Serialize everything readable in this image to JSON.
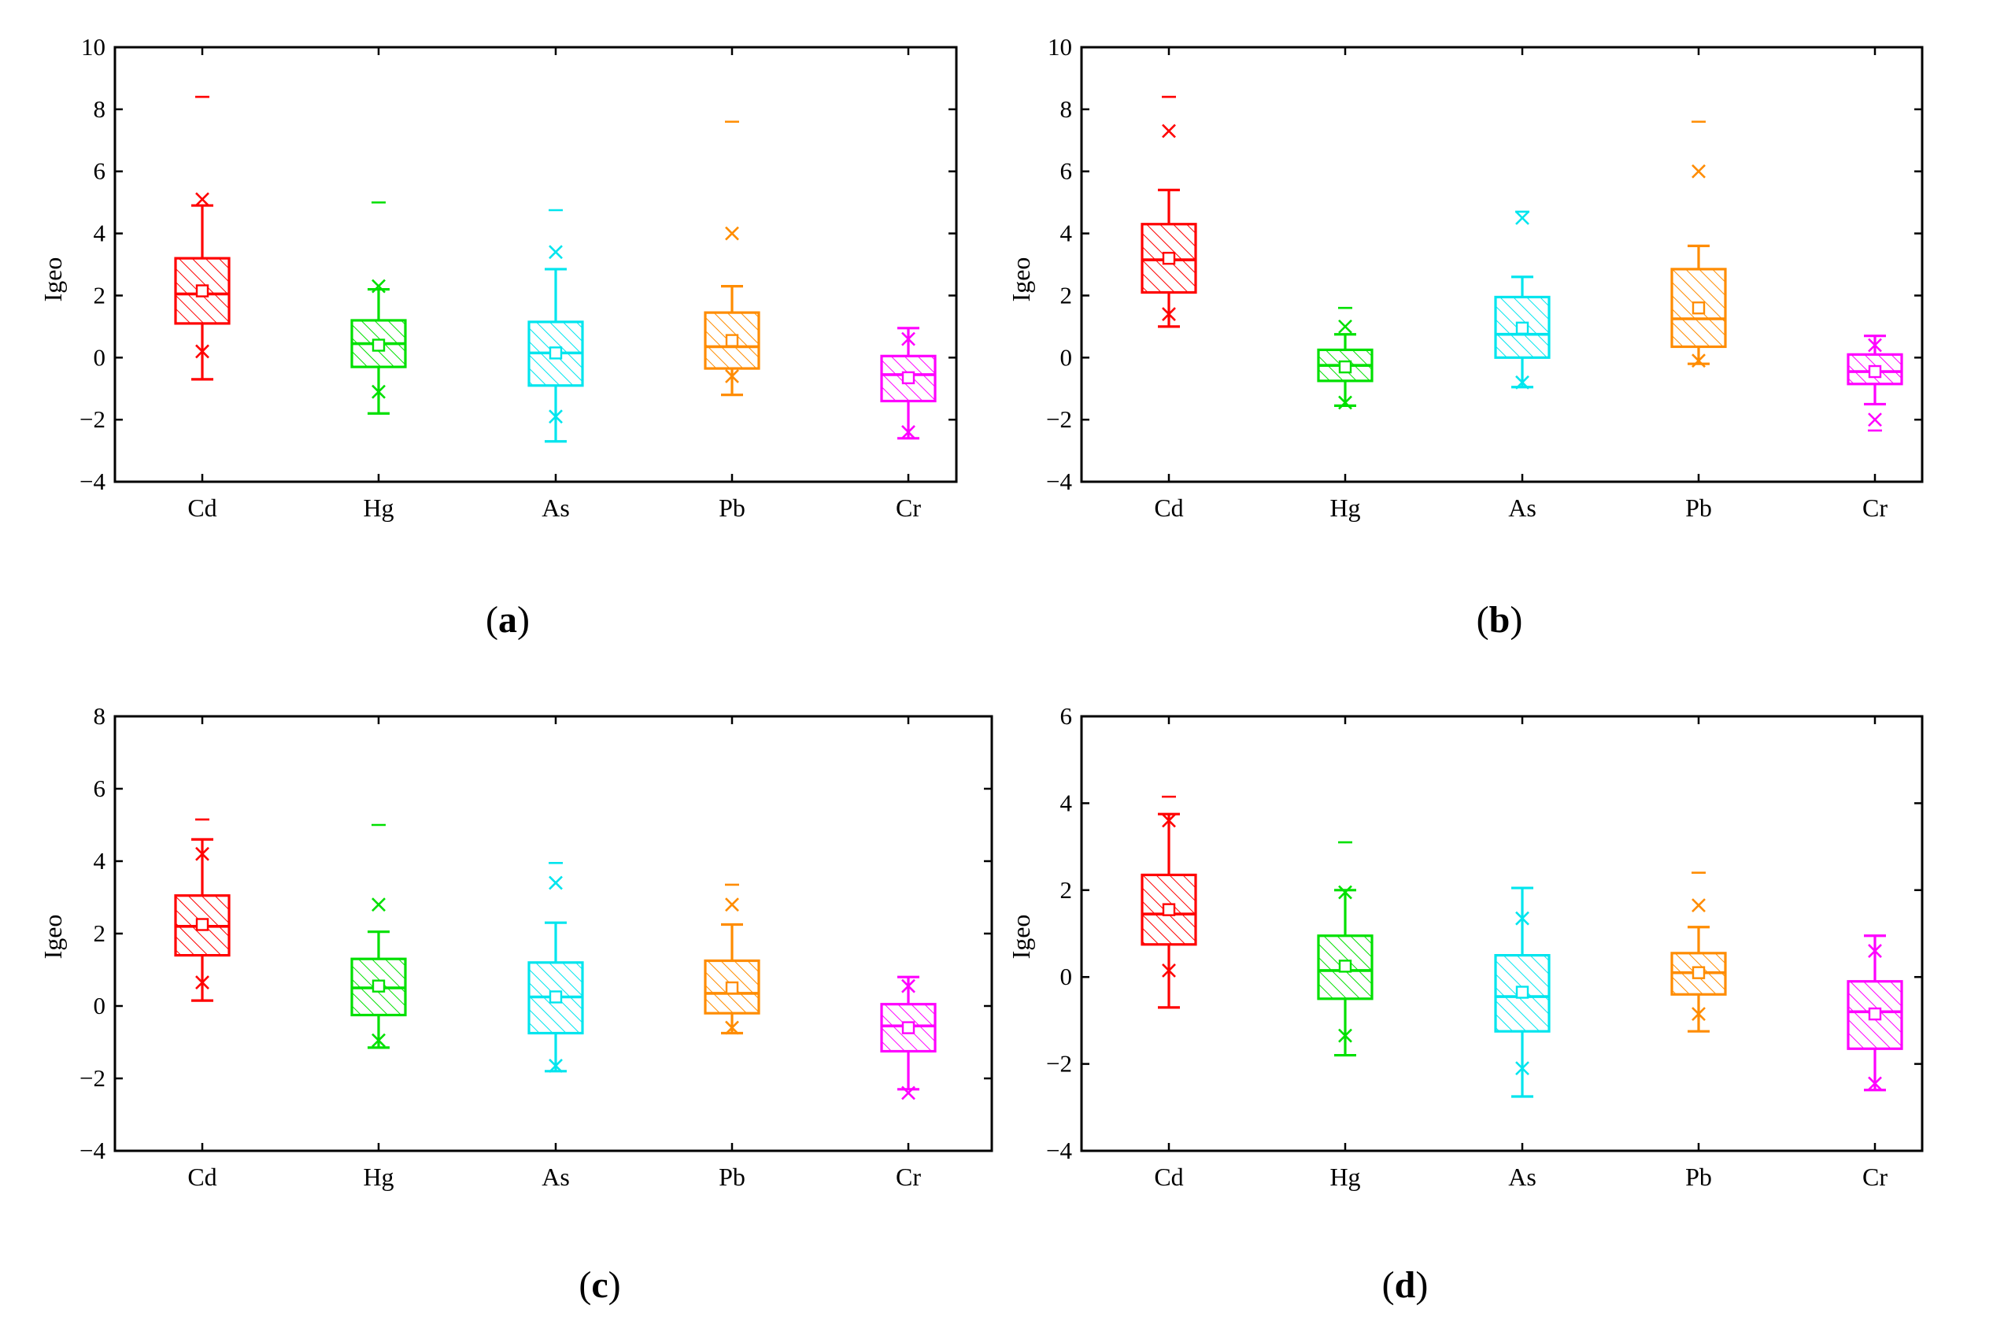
{
  "figure": {
    "colors": {
      "Cd": "#ff0000",
      "Hg": "#00e000",
      "As": "#00e5ee",
      "Pb": "#ff8c00",
      "Cr": "#ff00ff"
    }
  },
  "chart_data": [
    {
      "type": "box",
      "panel": "a",
      "caption_open": "(",
      "caption_letter": "a",
      "caption_close": ")",
      "ylabel": "Igeo",
      "ylim": [
        -4,
        10
      ],
      "yticks": [
        -4,
        -2,
        0,
        2,
        4,
        6,
        8,
        10
      ],
      "categories": [
        "Cd",
        "Hg",
        "As",
        "Pb",
        "Cr"
      ],
      "boxes": [
        {
          "name": "Cd",
          "q1": 1.1,
          "median": 2.05,
          "q3": 3.2,
          "mean": 2.15,
          "whisker_low": -0.7,
          "whisker_high": 4.9,
          "x_low": 0.2,
          "x_high": 5.1,
          "max_dash": 8.4
        },
        {
          "name": "Hg",
          "q1": -0.3,
          "median": 0.45,
          "q3": 1.2,
          "mean": 0.4,
          "whisker_low": -1.8,
          "whisker_high": 2.2,
          "x_low": -1.1,
          "x_high": 2.3,
          "max_dash": 5.0
        },
        {
          "name": "As",
          "q1": -0.9,
          "median": 0.15,
          "q3": 1.15,
          "mean": 0.15,
          "whisker_low": -2.7,
          "whisker_high": 2.85,
          "x_low": -1.9,
          "x_high": 3.4,
          "max_dash": 4.75
        },
        {
          "name": "Pb",
          "q1": -0.35,
          "median": 0.35,
          "q3": 1.45,
          "mean": 0.55,
          "whisker_low": -1.2,
          "whisker_high": 2.3,
          "x_low": -0.6,
          "x_high": 4.0,
          "max_dash": 7.6
        },
        {
          "name": "Cr",
          "q1": -1.4,
          "median": -0.55,
          "q3": 0.05,
          "mean": -0.65,
          "whisker_low": -2.6,
          "whisker_high": 0.95,
          "x_low": -2.4,
          "x_high": 0.6,
          "max_dash": null
        }
      ]
    },
    {
      "type": "box",
      "panel": "b",
      "caption_open": "(",
      "caption_letter": "b",
      "caption_close": ")",
      "ylabel": "Igeo",
      "ylim": [
        -4,
        10
      ],
      "yticks": [
        -4,
        -2,
        0,
        2,
        4,
        6,
        8,
        10
      ],
      "categories": [
        "Cd",
        "Hg",
        "As",
        "Pb",
        "Cr"
      ],
      "boxes": [
        {
          "name": "Cd",
          "q1": 2.1,
          "median": 3.15,
          "q3": 4.3,
          "mean": 3.2,
          "whisker_low": 1.0,
          "whisker_high": 5.4,
          "x_low": 1.4,
          "x_high": 7.3,
          "max_dash": 8.4
        },
        {
          "name": "Hg",
          "q1": -0.75,
          "median": -0.25,
          "q3": 0.25,
          "mean": -0.3,
          "whisker_low": -1.55,
          "whisker_high": 0.75,
          "x_low": -1.45,
          "x_high": 1.0,
          "max_dash": 1.6
        },
        {
          "name": "As",
          "q1": 0.0,
          "median": 0.75,
          "q3": 1.95,
          "mean": 0.95,
          "whisker_low": -0.95,
          "whisker_high": 2.6,
          "x_low": -0.8,
          "x_high": 4.5,
          "max_dash": 4.7
        },
        {
          "name": "Pb",
          "q1": 0.35,
          "median": 1.25,
          "q3": 2.85,
          "mean": 1.6,
          "whisker_low": -0.2,
          "whisker_high": 3.6,
          "x_low": -0.1,
          "x_high": 6.0,
          "max_dash": 7.6
        },
        {
          "name": "Cr",
          "q1": -0.85,
          "median": -0.45,
          "q3": 0.1,
          "mean": -0.45,
          "whisker_low": -1.5,
          "whisker_high": 0.7,
          "x_low": -2.0,
          "x_high": 0.4,
          "max_dash": -2.35
        }
      ]
    },
    {
      "type": "box",
      "panel": "c",
      "caption_open": "(",
      "caption_letter": "c",
      "caption_close": ")",
      "ylabel": "Igeo",
      "ylim": [
        -4,
        8
      ],
      "yticks": [
        -4,
        -2,
        0,
        2,
        4,
        6,
        8
      ],
      "categories": [
        "Cd",
        "Hg",
        "As",
        "Pb",
        "Cr"
      ],
      "boxes": [
        {
          "name": "Cd",
          "q1": 1.4,
          "median": 2.2,
          "q3": 3.05,
          "mean": 2.25,
          "whisker_low": 0.15,
          "whisker_high": 4.6,
          "x_low": 0.65,
          "x_high": 4.2,
          "max_dash": 5.15
        },
        {
          "name": "Hg",
          "q1": -0.25,
          "median": 0.5,
          "q3": 1.3,
          "mean": 0.55,
          "whisker_low": -1.15,
          "whisker_high": 2.05,
          "x_low": -0.95,
          "x_high": 2.8,
          "max_dash": 5.0
        },
        {
          "name": "As",
          "q1": -0.75,
          "median": 0.25,
          "q3": 1.2,
          "mean": 0.25,
          "whisker_low": -1.8,
          "whisker_high": 2.3,
          "x_low": -1.65,
          "x_high": 3.4,
          "max_dash": 3.95
        },
        {
          "name": "Pb",
          "q1": -0.2,
          "median": 0.35,
          "q3": 1.25,
          "mean": 0.5,
          "whisker_low": -0.75,
          "whisker_high": 2.25,
          "x_low": -0.6,
          "x_high": 2.8,
          "max_dash": 3.35
        },
        {
          "name": "Cr",
          "q1": -1.25,
          "median": -0.55,
          "q3": 0.05,
          "mean": -0.6,
          "whisker_low": -2.3,
          "whisker_high": 0.8,
          "x_low": -2.4,
          "x_high": 0.55,
          "max_dash": null
        }
      ]
    },
    {
      "type": "box",
      "panel": "d",
      "caption_open": "(",
      "caption_letter": "d",
      "caption_close": ")",
      "ylabel": "Igeo",
      "ylim": [
        -4,
        6
      ],
      "yticks": [
        -4,
        -2,
        0,
        2,
        4,
        6
      ],
      "categories": [
        "Cd",
        "Hg",
        "As",
        "Pb",
        "Cr"
      ],
      "boxes": [
        {
          "name": "Cd",
          "q1": 0.75,
          "median": 1.45,
          "q3": 2.35,
          "mean": 1.55,
          "whisker_low": -0.7,
          "whisker_high": 3.75,
          "x_low": 0.15,
          "x_high": 3.6,
          "max_dash": 4.15
        },
        {
          "name": "Hg",
          "q1": -0.5,
          "median": 0.15,
          "q3": 0.95,
          "mean": 0.25,
          "whisker_low": -1.8,
          "whisker_high": 2.0,
          "x_low": -1.35,
          "x_high": 1.95,
          "max_dash": 3.1
        },
        {
          "name": "As",
          "q1": -1.25,
          "median": -0.45,
          "q3": 0.5,
          "mean": -0.35,
          "whisker_low": -2.75,
          "whisker_high": 2.05,
          "x_low": -2.1,
          "x_high": 1.35,
          "max_dash": null
        },
        {
          "name": "Pb",
          "q1": -0.4,
          "median": 0.1,
          "q3": 0.55,
          "mean": 0.1,
          "whisker_low": -1.25,
          "whisker_high": 1.15,
          "x_low": -0.85,
          "x_high": 1.65,
          "max_dash": 2.4
        },
        {
          "name": "Cr",
          "q1": -1.65,
          "median": -0.8,
          "q3": -0.1,
          "mean": -0.85,
          "whisker_low": -2.6,
          "whisker_high": 0.95,
          "x_low": -2.45,
          "x_high": 0.6,
          "max_dash": null
        }
      ]
    }
  ]
}
